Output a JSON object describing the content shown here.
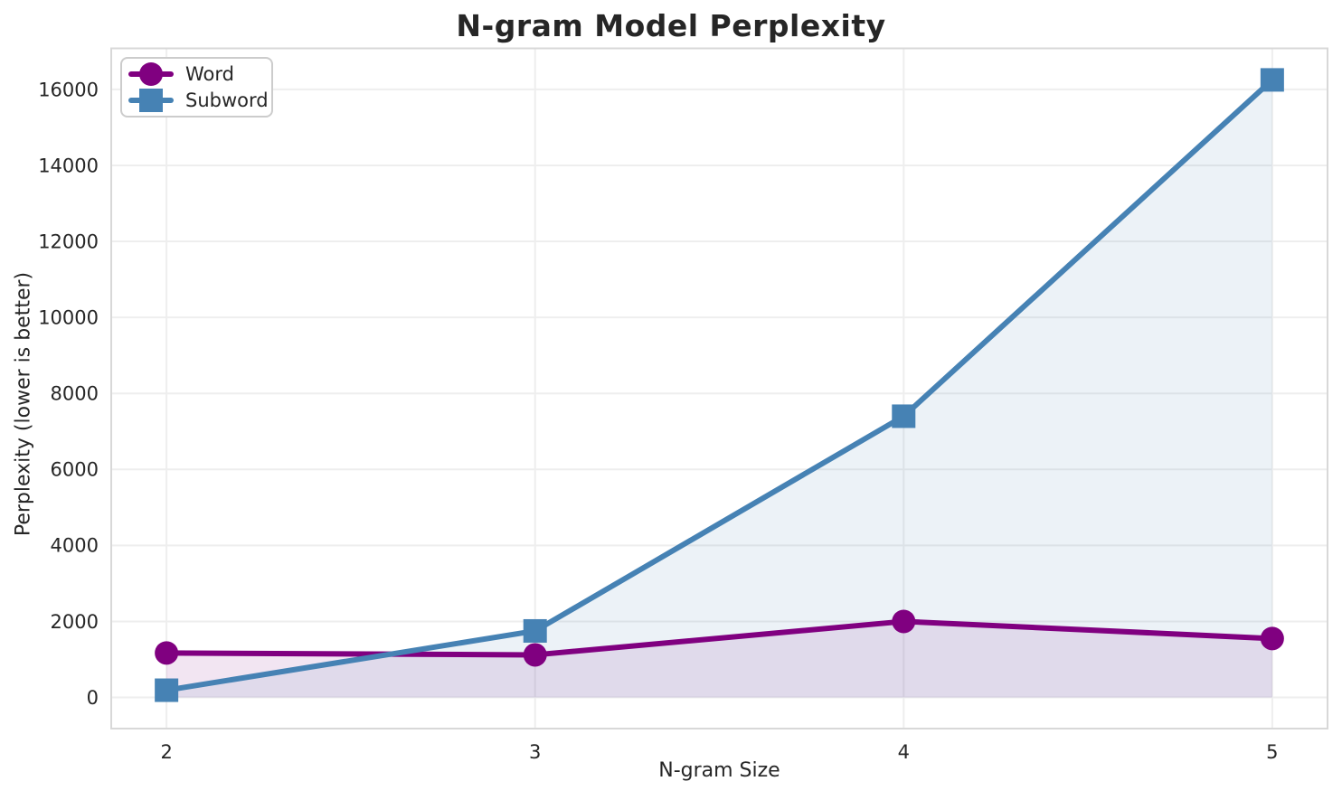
{
  "chart_data": {
    "type": "line",
    "title": "N-gram Model Perplexity",
    "xlabel": "N-gram Size",
    "ylabel": "Perplexity (lower is better)",
    "x": [
      2,
      3,
      4,
      5
    ],
    "series": [
      {
        "name": "Word",
        "values": [
          1170,
          1120,
          2000,
          1550
        ],
        "color": "#800080",
        "marker": "circle",
        "fill_to_zero": true,
        "fill_opacity": 0.1
      },
      {
        "name": "Subword",
        "values": [
          190,
          1750,
          7400,
          16250
        ],
        "color": "#4682B4",
        "marker": "square",
        "fill_to_zero": true,
        "fill_opacity": 0.1
      }
    ],
    "xticks": [
      2,
      3,
      4,
      5
    ],
    "yticks": [
      0,
      2000,
      4000,
      6000,
      8000,
      10000,
      12000,
      14000,
      16000
    ],
    "xlim": [
      1.85,
      5.15
    ],
    "ylim": [
      -820,
      17080
    ],
    "grid": true,
    "legend_position": "upper-left",
    "colors": {
      "text": "#262626",
      "grid": "#eeeeee",
      "spine": "#d8d8d8",
      "background": "#ffffff"
    }
  }
}
